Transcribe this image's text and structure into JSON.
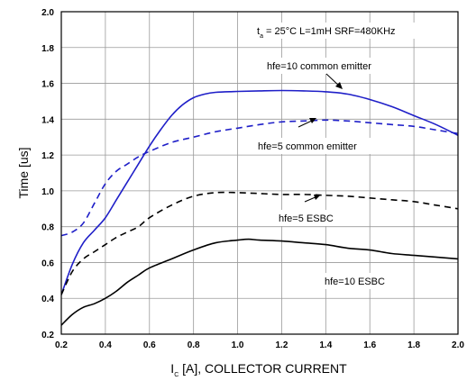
{
  "chart_data": {
    "type": "line",
    "xlabel": {
      "prefix": "I",
      "sub": "C",
      "rest": " [A], COLLECTOR CURRENT"
    },
    "ylabel": "Time [us]",
    "xlim": [
      0.2,
      2.0
    ],
    "ylim": [
      0.2,
      2.0
    ],
    "xticks": [
      "0.2",
      "0.4",
      "0.6",
      "0.8",
      "1.0",
      "1.2",
      "1.4",
      "1.6",
      "1.8",
      "2.0"
    ],
    "yticks": [
      "0.2",
      "0.4",
      "0.6",
      "0.8",
      "1.0",
      "1.2",
      "1.4",
      "1.6",
      "1.8",
      "2.0"
    ],
    "grid": true,
    "condition": {
      "t": "t",
      "t_sub": "a",
      "rest": " = 25°C L=1mH SRF=480KHz"
    },
    "series": [
      {
        "name": "hfe=10 common emitter",
        "color": "#1f1fc8",
        "dash": "solid",
        "x": [
          0.2,
          0.25,
          0.3,
          0.35,
          0.4,
          0.45,
          0.5,
          0.55,
          0.6,
          0.65,
          0.7,
          0.75,
          0.8,
          0.85,
          0.9,
          1.0,
          1.1,
          1.2,
          1.3,
          1.4,
          1.5,
          1.6,
          1.7,
          1.8,
          1.9,
          2.0
        ],
        "y": [
          0.42,
          0.59,
          0.71,
          0.78,
          0.85,
          0.95,
          1.05,
          1.15,
          1.25,
          1.34,
          1.42,
          1.48,
          1.52,
          1.54,
          1.55,
          1.555,
          1.558,
          1.56,
          1.558,
          1.553,
          1.54,
          1.51,
          1.47,
          1.42,
          1.37,
          1.31
        ]
      },
      {
        "name": "hfe=5 common emitter",
        "color": "#1f1fc8",
        "dash": "dashed",
        "x": [
          0.2,
          0.25,
          0.3,
          0.35,
          0.4,
          0.45,
          0.5,
          0.55,
          0.6,
          0.7,
          0.8,
          0.9,
          1.0,
          1.1,
          1.2,
          1.3,
          1.4,
          1.5,
          1.6,
          1.7,
          1.8,
          1.9,
          2.0
        ],
        "y": [
          0.75,
          0.77,
          0.82,
          0.93,
          1.04,
          1.11,
          1.15,
          1.19,
          1.22,
          1.27,
          1.3,
          1.33,
          1.35,
          1.37,
          1.385,
          1.39,
          1.395,
          1.39,
          1.38,
          1.37,
          1.36,
          1.34,
          1.32
        ]
      },
      {
        "name": "hfe=5 ESBC",
        "color": "#000000",
        "dash": "dashed",
        "x": [
          0.2,
          0.25,
          0.3,
          0.35,
          0.4,
          0.45,
          0.5,
          0.55,
          0.6,
          0.7,
          0.8,
          0.9,
          1.0,
          1.1,
          1.2,
          1.3,
          1.4,
          1.5,
          1.6,
          1.7,
          1.8,
          1.9,
          2.0
        ],
        "y": [
          0.42,
          0.55,
          0.62,
          0.66,
          0.7,
          0.74,
          0.77,
          0.8,
          0.85,
          0.92,
          0.97,
          0.99,
          0.99,
          0.985,
          0.98,
          0.98,
          0.975,
          0.97,
          0.96,
          0.95,
          0.94,
          0.92,
          0.9
        ]
      },
      {
        "name": "hfe=10 ESBC",
        "color": "#000000",
        "dash": "solid",
        "x": [
          0.2,
          0.25,
          0.3,
          0.35,
          0.4,
          0.45,
          0.5,
          0.55,
          0.6,
          0.7,
          0.8,
          0.9,
          1.0,
          1.05,
          1.1,
          1.2,
          1.3,
          1.4,
          1.5,
          1.6,
          1.7,
          1.8,
          1.9,
          2.0
        ],
        "y": [
          0.25,
          0.31,
          0.35,
          0.37,
          0.4,
          0.44,
          0.49,
          0.53,
          0.57,
          0.62,
          0.67,
          0.71,
          0.725,
          0.73,
          0.725,
          0.72,
          0.71,
          0.7,
          0.68,
          0.67,
          0.65,
          0.64,
          0.63,
          0.62
        ]
      }
    ]
  }
}
